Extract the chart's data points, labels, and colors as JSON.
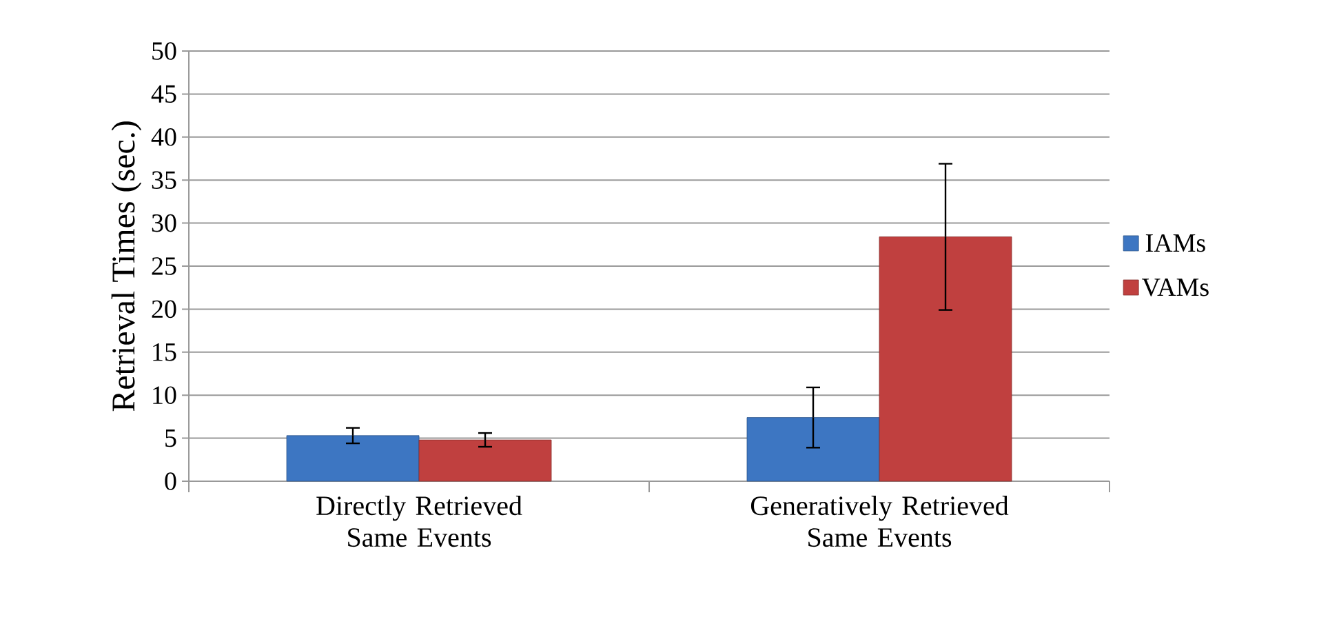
{
  "chart_data": {
    "type": "bar",
    "ylabel": "Retrieval Times (sec.)",
    "categories": [
      "Directly Retrieved Same Events",
      "Generatively Retrieved Same Events"
    ],
    "series": [
      {
        "name": "IAMs",
        "color": "#3d76c2",
        "values": [
          5.3,
          7.4
        ],
        "errors": [
          0.9,
          3.5
        ]
      },
      {
        "name": "VAMs",
        "color": "#c0403f",
        "values": [
          4.8,
          28.4
        ],
        "errors": [
          0.8,
          8.5
        ]
      }
    ],
    "ylim": [
      0,
      50
    ],
    "yticks": [
      0,
      5,
      10,
      15,
      20,
      25,
      30,
      35,
      40,
      45,
      50
    ],
    "grid": "y",
    "legend": "right"
  }
}
